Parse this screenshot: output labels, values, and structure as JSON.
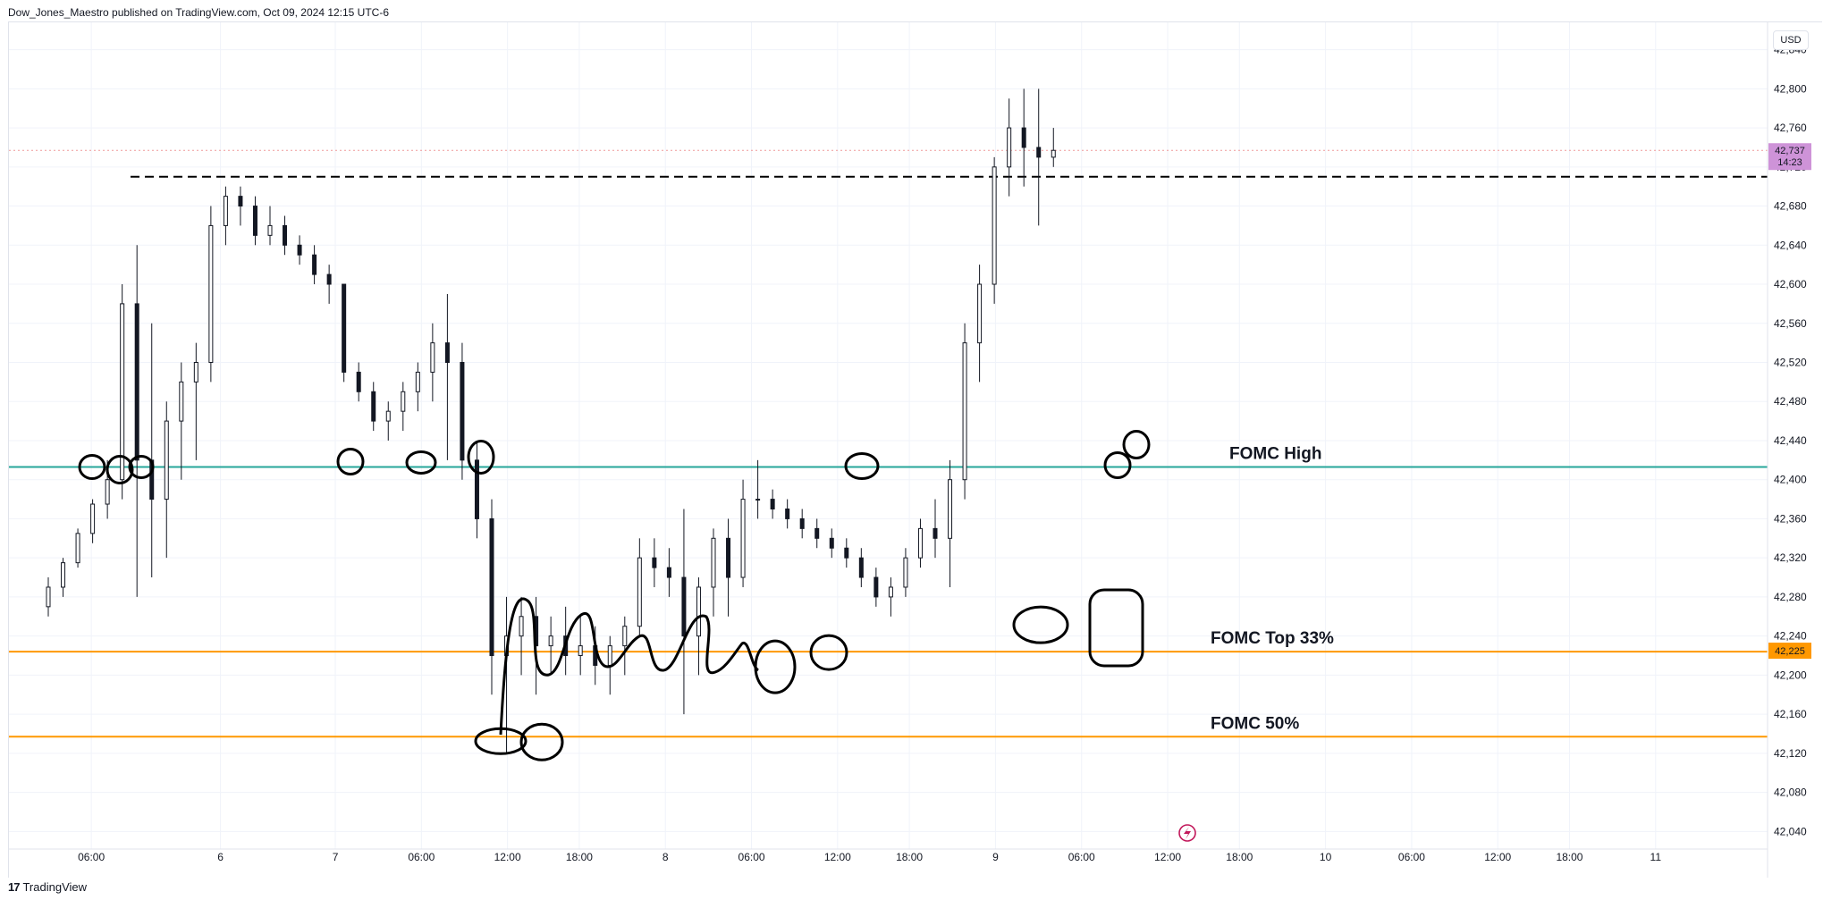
{
  "header": {
    "published_line": "Dow_Jones_Maestro published on TradingView.com, Oct 09, 2024 12:15 UTC-6"
  },
  "currency": "USD",
  "footer": {
    "logo_mark": "17",
    "brand": "TradingView"
  },
  "colors": {
    "fomc_high": "#26a69a",
    "fomc_orange": "#ff9800",
    "price_badge_bg": "#ce93d8",
    "candle": "#131722",
    "grid": "#f0f3fa",
    "drawing": "#000000",
    "lightning": "#c2185b"
  },
  "icons": {
    "event_marker": "lightning-icon"
  },
  "chart_data": {
    "type": "candlestick",
    "symbol_note": "",
    "y_ticks": [
      42840,
      42800,
      42760,
      42720,
      42680,
      42640,
      42600,
      42560,
      42520,
      42480,
      42440,
      42400,
      42360,
      42320,
      42280,
      42240,
      42200,
      42160,
      42120,
      42080,
      42040
    ],
    "ylim": [
      42022,
      42868
    ],
    "x_ticks": [
      "06:00",
      "6",
      "7",
      "06:00",
      "12:00",
      "18:00",
      "8",
      "06:00",
      "12:00",
      "18:00",
      "9",
      "06:00",
      "12:00",
      "18:00",
      "10",
      "06:00",
      "12:00",
      "18:00",
      "11"
    ],
    "x_tick_index": [
      3,
      12,
      20,
      26,
      32,
      37,
      43,
      49,
      55,
      60,
      66,
      72,
      78,
      83,
      89,
      95,
      101,
      106,
      112
    ],
    "xlim": [
      0,
      116
    ],
    "last_price": {
      "value": "42,737",
      "countdown": "14:23",
      "numeric": 42737
    },
    "hline_price_badge": {
      "value": "42,225",
      "numeric": 42225
    },
    "levels": [
      {
        "label": "FOMC High",
        "value": 42413,
        "style": "solid",
        "color": "#26a69a"
      },
      {
        "label": "FOMC Top 33%",
        "value": 42224,
        "style": "solid",
        "color": "#ff9800"
      },
      {
        "label": "FOMC 50%",
        "value": 42137,
        "style": "solid",
        "color": "#ff9800"
      },
      {
        "label": "",
        "value": 42710,
        "style": "dashed",
        "color": "#000000"
      }
    ],
    "candles_index_start": 0,
    "candles": [
      [
        42270,
        42300,
        42260,
        42290
      ],
      [
        42290,
        42320,
        42280,
        42315
      ],
      [
        42315,
        42350,
        42310,
        42345
      ],
      [
        42345,
        42380,
        42335,
        42375
      ],
      [
        42375,
        42420,
        42360,
        42400
      ],
      [
        42400,
        42600,
        42380,
        42580
      ],
      [
        42580,
        42640,
        42280,
        42420
      ],
      [
        42420,
        42560,
        42300,
        42380
      ],
      [
        42380,
        42480,
        42320,
        42460
      ],
      [
        42460,
        42520,
        42400,
        42500
      ],
      [
        42500,
        42540,
        42420,
        42520
      ],
      [
        42520,
        42680,
        42500,
        42660
      ],
      [
        42660,
        42700,
        42640,
        42690
      ],
      [
        42690,
        42700,
        42660,
        42680
      ],
      [
        42680,
        42690,
        42640,
        42650
      ],
      [
        42650,
        42680,
        42640,
        42660
      ],
      [
        42660,
        42670,
        42630,
        42640
      ],
      [
        42640,
        42650,
        42620,
        42630
      ],
      [
        42630,
        42640,
        42600,
        42610
      ],
      [
        42610,
        42620,
        42580,
        42600
      ],
      [
        42600,
        42600,
        42500,
        42510
      ],
      [
        42510,
        42520,
        42480,
        42490
      ],
      [
        42490,
        42500,
        42450,
        42460
      ],
      [
        42460,
        42480,
        42440,
        42470
      ],
      [
        42470,
        42500,
        42450,
        42490
      ],
      [
        42490,
        42520,
        42470,
        42510
      ],
      [
        42510,
        42560,
        42480,
        42540
      ],
      [
        42540,
        42590,
        42420,
        42520
      ],
      [
        42520,
        42540,
        42400,
        42420
      ],
      [
        42420,
        42440,
        42340,
        42360
      ],
      [
        42360,
        42380,
        42180,
        42220
      ],
      [
        42220,
        42280,
        42120,
        42240
      ],
      [
        42240,
        42280,
        42200,
        42260
      ],
      [
        42260,
        42280,
        42180,
        42230
      ],
      [
        42230,
        42260,
        42200,
        42240
      ],
      [
        42240,
        42270,
        42200,
        42220
      ],
      [
        42220,
        42260,
        42200,
        42230
      ],
      [
        42230,
        42250,
        42190,
        42210
      ],
      [
        42210,
        42240,
        42180,
        42230
      ],
      [
        42230,
        42260,
        42200,
        42250
      ],
      [
        42250,
        42340,
        42240,
        42320
      ],
      [
        42320,
        42340,
        42290,
        42310
      ],
      [
        42310,
        42330,
        42280,
        42300
      ],
      [
        42300,
        42370,
        42160,
        42240
      ],
      [
        42240,
        42300,
        42200,
        42290
      ],
      [
        42290,
        42350,
        42260,
        42340
      ],
      [
        42340,
        42360,
        42260,
        42300
      ],
      [
        42300,
        42400,
        42290,
        42380
      ],
      [
        42380,
        42420,
        42360,
        42380
      ],
      [
        42380,
        42390,
        42360,
        42370
      ],
      [
        42370,
        42380,
        42350,
        42360
      ],
      [
        42360,
        42370,
        42340,
        42350
      ],
      [
        42350,
        42360,
        42330,
        42340
      ],
      [
        42340,
        42350,
        42320,
        42330
      ],
      [
        42330,
        42340,
        42310,
        42320
      ],
      [
        42320,
        42330,
        42290,
        42300
      ],
      [
        42300,
        42310,
        42270,
        42280
      ],
      [
        42280,
        42300,
        42260,
        42290
      ],
      [
        42290,
        42330,
        42280,
        42320
      ],
      [
        42320,
        42360,
        42310,
        42350
      ],
      [
        42350,
        42380,
        42320,
        42340
      ],
      [
        42340,
        42420,
        42290,
        42400
      ],
      [
        42400,
        42560,
        42380,
        42540
      ],
      [
        42540,
        42620,
        42500,
        42600
      ],
      [
        42600,
        42730,
        42580,
        42720
      ],
      [
        42720,
        42790,
        42690,
        42760
      ],
      [
        42760,
        42800,
        42700,
        42740
      ],
      [
        42740,
        42800,
        42660,
        42730
      ],
      [
        42730,
        42760,
        42720,
        42737
      ]
    ],
    "candle_positions": [
      0,
      1,
      2,
      3,
      4,
      5,
      6,
      7,
      8,
      9,
      10,
      11,
      12,
      13,
      14,
      15,
      16,
      17,
      18,
      19,
      20,
      21,
      22,
      23,
      24,
      25,
      26,
      27,
      28,
      29,
      30,
      31,
      32,
      33,
      34,
      35,
      36,
      37,
      38,
      39,
      40,
      41,
      42,
      43,
      44,
      45,
      46,
      47,
      48,
      49,
      50,
      51,
      52,
      53,
      54,
      55,
      56,
      57,
      58,
      59,
      60,
      61,
      62,
      63,
      64,
      65,
      66,
      67,
      68
    ]
  }
}
